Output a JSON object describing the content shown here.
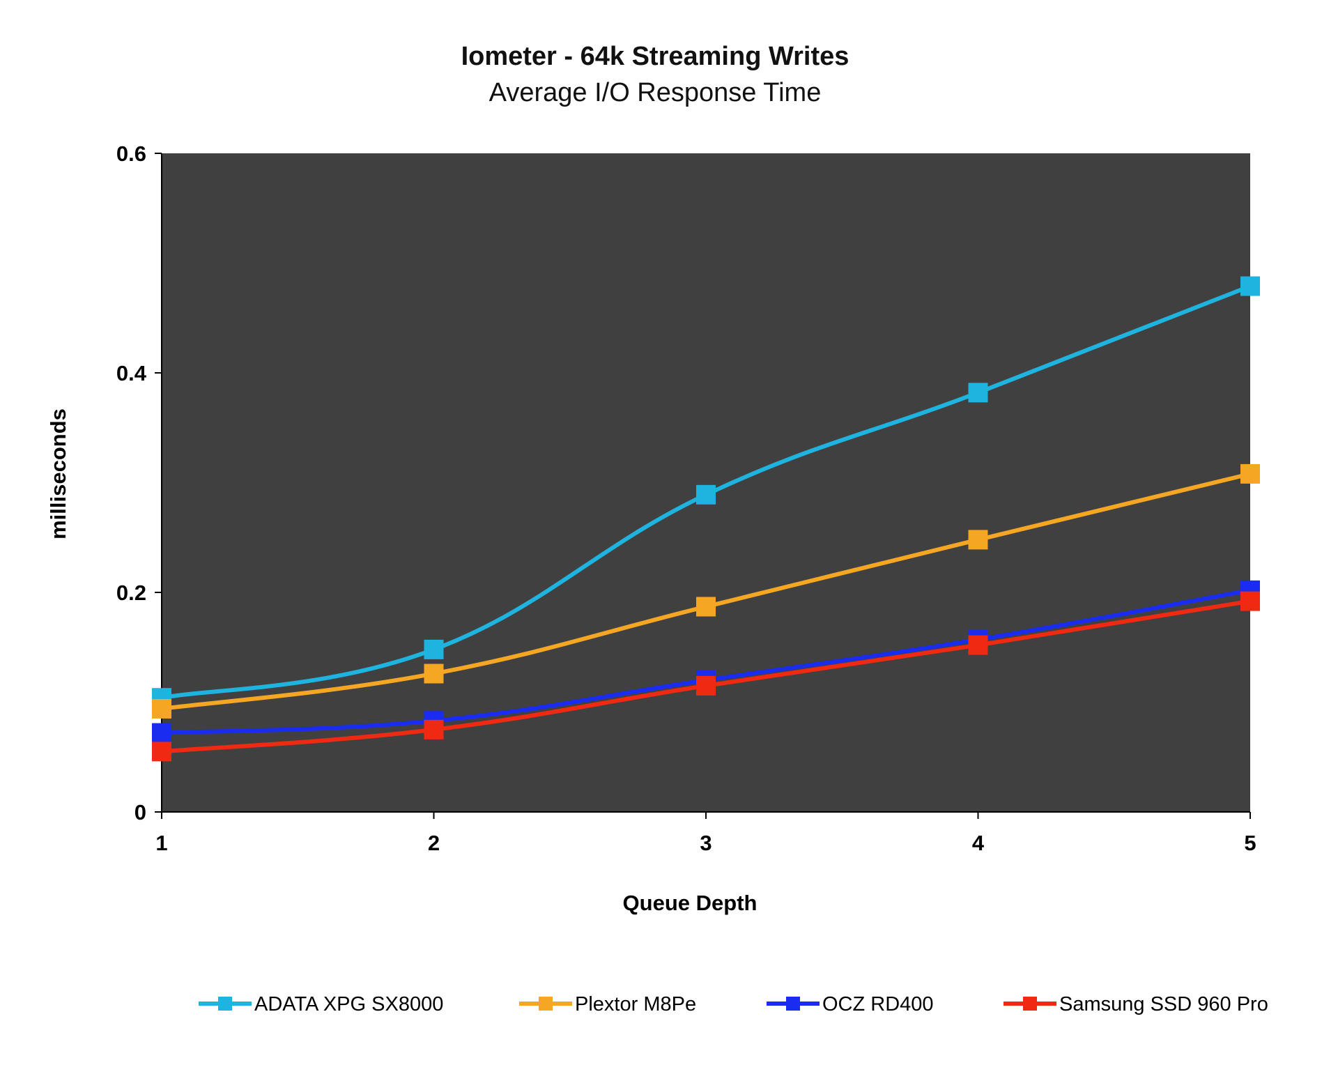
{
  "chart_data": {
    "type": "line",
    "title": "Iometer - 64k Streaming Writes",
    "subtitle": "Average I/O Response Time",
    "xlabel": "Queue Depth",
    "ylabel": "milliseconds",
    "x": [
      1,
      2,
      3,
      4,
      5
    ],
    "x_tick_labels": [
      "1",
      "2",
      "3",
      "4",
      "5"
    ],
    "ylim": [
      0,
      0.6
    ],
    "y_ticks": [
      0,
      0.2,
      0.4,
      0.6
    ],
    "y_tick_labels": [
      "0",
      "0.2",
      "0.4",
      "0.6"
    ],
    "grid": false,
    "plot_background": "#404040",
    "legend_position": "bottom",
    "series": [
      {
        "name": "ADATA XPG SX8000",
        "color": "#1fb3e0",
        "values": [
          0.104,
          0.148,
          0.289,
          0.382,
          0.479
        ]
      },
      {
        "name": "Plextor M8Pe",
        "color": "#f5a623",
        "values": [
          0.094,
          0.126,
          0.187,
          0.248,
          0.308
        ]
      },
      {
        "name": "OCZ RD400",
        "color": "#1a2cf0",
        "values": [
          0.072,
          0.083,
          0.12,
          0.157,
          0.202
        ]
      },
      {
        "name": "Samsung SSD 960 Pro",
        "color": "#f02a12",
        "values": [
          0.055,
          0.075,
          0.115,
          0.152,
          0.192
        ]
      }
    ]
  }
}
